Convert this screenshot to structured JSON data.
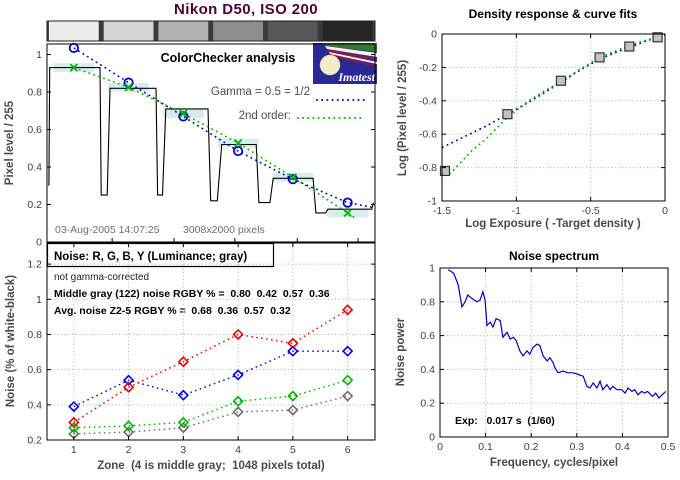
{
  "chart_data": [
    {
      "id": "colorchecker-analysis",
      "type": "line",
      "title": "Nikon D50, ISO 200",
      "ylabel": "Pixel level / 255",
      "annotation": "ColorChecker analysis",
      "legend": [
        {
          "label": "Gamma = 0.5 = 1/2",
          "color": "#0000cc"
        },
        {
          "label": "2nd order:",
          "color": "#00b400"
        }
      ],
      "footer_date": "03-Aug-2005 14:07:25",
      "footer_pixels": "3008x2000 pixels",
      "logo_text": "Imatest",
      "xlim": [
        0.51,
        6.5
      ],
      "ylim": [
        0,
        1.056
      ],
      "yticks": [
        0,
        0.2,
        0.4,
        0.6,
        0.8,
        1
      ],
      "grayscale_strip": {
        "zone_shades": [
          "#ececec",
          "#d4d4d4",
          "#b2b2b2",
          "#8e8e8e",
          "#585858",
          "#262626"
        ],
        "separator_color": "#3a3a3a"
      },
      "step_profile": {
        "color": "#000000",
        "points": [
          [
            0.545,
            0.3
          ],
          [
            0.56,
            0.93
          ],
          [
            1.478,
            0.93
          ],
          [
            1.5,
            0.25
          ],
          [
            1.61,
            0.25
          ],
          [
            1.66,
            0.82
          ],
          [
            2.5,
            0.82
          ],
          [
            2.53,
            0.25
          ],
          [
            2.62,
            0.25
          ],
          [
            2.68,
            0.71
          ],
          [
            3.45,
            0.71
          ],
          [
            3.5,
            0.22
          ],
          [
            3.62,
            0.22
          ],
          [
            3.7,
            0.52
          ],
          [
            4.33,
            0.52
          ],
          [
            4.38,
            0.21
          ],
          [
            4.58,
            0.21
          ],
          [
            4.64,
            0.34
          ],
          [
            5.37,
            0.34
          ],
          [
            5.42,
            0.155
          ],
          [
            5.6,
            0.155
          ],
          [
            5.64,
            0.175
          ],
          [
            6.44,
            0.175
          ],
          [
            6.47,
            0.21
          ]
        ]
      },
      "patch_boxes": {
        "color": "#d7eded",
        "half_width": 0.37,
        "half_height": 0.024
      },
      "series": [
        {
          "name": "gamma-fit",
          "color": "#0000cc",
          "marker": "circle",
          "markers": [
            [
              1,
              1.035
            ],
            [
              2,
              0.85
            ],
            [
              3,
              0.67
            ],
            [
              4,
              0.485
            ],
            [
              5,
              0.335
            ],
            [
              6,
              0.21
            ]
          ],
          "line": [
            [
              1,
              1.035
            ],
            [
              2,
              0.85
            ],
            [
              3,
              0.67
            ],
            [
              4,
              0.485
            ],
            [
              5,
              0.335
            ],
            [
              6,
              0.21
            ],
            [
              6.45,
              0.185
            ]
          ]
        },
        {
          "name": "second-order-fit",
          "color": "#00b400",
          "marker": "x",
          "markers": [
            [
              1,
              0.93
            ],
            [
              2,
              0.825
            ],
            [
              3,
              0.685
            ],
            [
              4,
              0.528
            ],
            [
              5,
              0.345
            ],
            [
              6,
              0.155
            ]
          ],
          "line": [
            [
              1,
              0.93
            ],
            [
              2,
              0.825
            ],
            [
              3,
              0.685
            ],
            [
              4,
              0.528
            ],
            [
              5,
              0.345
            ],
            [
              6,
              0.155
            ],
            [
              6.15,
              0.125
            ]
          ]
        }
      ]
    },
    {
      "id": "density-response",
      "type": "scatter",
      "title": "Density response & curve fits",
      "xlabel": "Log Exposure ( -Target density )",
      "ylabel": "Log (Pixel level / 255)",
      "xlim": [
        -1.5,
        0
      ],
      "ylim": [
        -1,
        0
      ],
      "xticks": [
        -1.5,
        -1,
        -0.5,
        0
      ],
      "yticks": [
        0,
        -0.2,
        -0.4,
        -0.6,
        -0.8,
        -1
      ],
      "grid": true,
      "points": [
        [
          -1.48,
          -0.82
        ],
        [
          -1.06,
          -0.48
        ],
        [
          -0.7,
          -0.28
        ],
        [
          -0.44,
          -0.14
        ],
        [
          -0.24,
          -0.075
        ],
        [
          -0.05,
          -0.02
        ]
      ],
      "fits": [
        {
          "name": "gamma-fit",
          "color": "#0000cc",
          "points": [
            [
              -1.5,
              -0.68
            ],
            [
              -1.35,
              -0.615
            ],
            [
              -1.2,
              -0.55
            ],
            [
              -1.06,
              -0.48
            ],
            [
              -0.9,
              -0.4
            ],
            [
              -0.8,
              -0.345
            ],
            [
              -0.7,
              -0.29
            ],
            [
              -0.57,
              -0.215
            ],
            [
              -0.44,
              -0.15
            ],
            [
              -0.33,
              -0.11
            ],
            [
              -0.24,
              -0.08
            ],
            [
              -0.12,
              -0.04
            ],
            [
              0,
              -0.005
            ]
          ]
        },
        {
          "name": "second-order-fit",
          "color": "#00b400",
          "points": [
            [
              -1.45,
              -0.84
            ],
            [
              -1.3,
              -0.7
            ],
            [
              -1.2,
              -0.625
            ],
            [
              -1.06,
              -0.5
            ],
            [
              -0.9,
              -0.39
            ],
            [
              -0.8,
              -0.335
            ],
            [
              -0.7,
              -0.285
            ],
            [
              -0.57,
              -0.21
            ],
            [
              -0.44,
              -0.14
            ],
            [
              -0.33,
              -0.1
            ],
            [
              -0.24,
              -0.07
            ],
            [
              -0.12,
              -0.035
            ],
            [
              0,
              -0.015
            ]
          ]
        }
      ]
    },
    {
      "id": "noise-by-zone",
      "type": "line",
      "annotation_title": "Noise: R, G, B, Y (Luminance; gray)",
      "note": "not gamma-corrected",
      "middle_gray": "Middle gray (122) noise RGBY % =  0.80  0.42  0.57  0.36",
      "avg_noise": "Avg. noise Z2-5 RGBY % =  0.68  0.36  0.57  0.32",
      "xlabel": "Zone  (4 is middle gray;  1048 pixels total)",
      "ylabel": "Noise (% of white-black)",
      "xlim": [
        0.51,
        6.5
      ],
      "ylim": [
        0.2,
        1.32
      ],
      "xticks": [
        1,
        2,
        3,
        4,
        5,
        6
      ],
      "yticks": [
        0.2,
        0.4,
        0.6,
        0.8,
        1,
        1.2
      ],
      "grid": true,
      "categories": [
        1,
        2,
        3,
        4,
        5,
        6
      ],
      "series": [
        {
          "name": "Y",
          "color": "#6e6e6e",
          "values": [
            0.235,
            0.245,
            0.27,
            0.36,
            0.37,
            0.45
          ]
        },
        {
          "name": "G",
          "color": "#00b400",
          "values": [
            0.27,
            0.28,
            0.3,
            0.42,
            0.45,
            0.54
          ]
        },
        {
          "name": "B",
          "color": "#0000e0",
          "values": [
            0.39,
            0.54,
            0.455,
            0.57,
            0.705,
            0.705
          ]
        },
        {
          "name": "R",
          "color": "#e60000",
          "values": [
            0.3,
            0.5,
            0.645,
            0.8,
            0.75,
            0.94
          ]
        }
      ]
    },
    {
      "id": "noise-spectrum",
      "type": "line",
      "title": "Noise spectrum",
      "xlabel": "Frequency, cycles/pixel",
      "ylabel": "Noise power",
      "annotation": "Exp:   0.017 s  (1/60)",
      "xlim": [
        0,
        0.5
      ],
      "ylim": [
        0,
        1
      ],
      "xticks": [
        0,
        0.1,
        0.2,
        0.3,
        0.4,
        0.5
      ],
      "yticks": [
        0,
        0.2,
        0.4,
        0.6,
        0.8,
        1
      ],
      "grid": true,
      "series": [
        {
          "name": "noise-power",
          "color": "#0000bb",
          "points": [
            [
              0.018,
              0.99
            ],
            [
              0.03,
              0.97
            ],
            [
              0.04,
              0.9
            ],
            [
              0.048,
              0.77
            ],
            [
              0.055,
              0.8
            ],
            [
              0.061,
              0.84
            ],
            [
              0.07,
              0.82
            ],
            [
              0.081,
              0.8
            ],
            [
              0.088,
              0.81
            ],
            [
              0.094,
              0.86
            ],
            [
              0.099,
              0.81
            ],
            [
              0.103,
              0.66
            ],
            [
              0.11,
              0.68
            ],
            [
              0.116,
              0.65
            ],
            [
              0.123,
              0.7
            ],
            [
              0.132,
              0.69
            ],
            [
              0.138,
              0.59
            ],
            [
              0.147,
              0.62
            ],
            [
              0.154,
              0.58
            ],
            [
              0.161,
              0.59
            ],
            [
              0.167,
              0.57
            ],
            [
              0.175,
              0.51
            ],
            [
              0.182,
              0.48
            ],
            [
              0.191,
              0.51
            ],
            [
              0.197,
              0.49
            ],
            [
              0.204,
              0.53
            ],
            [
              0.213,
              0.55
            ],
            [
              0.219,
              0.54
            ],
            [
              0.226,
              0.48
            ],
            [
              0.235,
              0.45
            ],
            [
              0.241,
              0.47
            ],
            [
              0.248,
              0.44
            ],
            [
              0.252,
              0.41
            ],
            [
              0.259,
              0.38
            ],
            [
              0.27,
              0.39
            ],
            [
              0.281,
              0.38
            ],
            [
              0.292,
              0.38
            ],
            [
              0.303,
              0.37
            ],
            [
              0.314,
              0.36
            ],
            [
              0.322,
              0.3
            ],
            [
              0.329,
              0.29
            ],
            [
              0.336,
              0.32
            ],
            [
              0.344,
              0.29
            ],
            [
              0.351,
              0.33
            ],
            [
              0.357,
              0.28
            ],
            [
              0.366,
              0.31
            ],
            [
              0.373,
              0.28
            ],
            [
              0.379,
              0.3
            ],
            [
              0.388,
              0.28
            ],
            [
              0.399,
              0.28
            ],
            [
              0.406,
              0.26
            ],
            [
              0.412,
              0.29
            ],
            [
              0.421,
              0.27
            ],
            [
              0.427,
              0.28
            ],
            [
              0.434,
              0.25
            ],
            [
              0.442,
              0.27
            ],
            [
              0.449,
              0.26
            ],
            [
              0.455,
              0.27
            ],
            [
              0.466,
              0.24
            ],
            [
              0.473,
              0.26
            ],
            [
              0.48,
              0.23
            ],
            [
              0.487,
              0.25
            ],
            [
              0.495,
              0.27
            ]
          ]
        }
      ]
    }
  ]
}
